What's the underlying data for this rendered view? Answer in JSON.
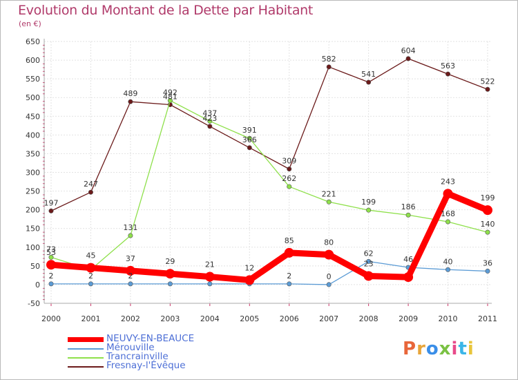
{
  "title": "Evolution du Montant de la Dette par Habitant",
  "subtitle": "(en €)",
  "logo": {
    "text": "Proxiti",
    "colors": [
      "#e8663a",
      "#e8a53a",
      "#3a8ee8",
      "#7ac143",
      "#e84a8a",
      "#3ab5e8",
      "#e8c53a"
    ]
  },
  "chart_data": {
    "type": "line",
    "title": "Evolution du Montant de la Dette par Habitant",
    "ylabel": "(en €)",
    "xlabel": "",
    "x": [
      "2000",
      "2001",
      "2002",
      "2003",
      "2004",
      "2005",
      "2006",
      "2007",
      "2008",
      "2009",
      "2010",
      "2011"
    ],
    "ylim": [
      -50,
      650
    ],
    "yticks": [
      "650",
      "600",
      "550",
      "500",
      "450",
      "400",
      "350",
      "300",
      "250",
      "200",
      "150",
      "100",
      "50",
      "0",
      "-50"
    ],
    "grid": true,
    "legend_position": "bottom-left",
    "series": [
      {
        "name": "NEUVY-EN-BEAUCE",
        "color": "#ff0000",
        "values": [
          53,
          45,
          37,
          29,
          21,
          12,
          85,
          80,
          23,
          20,
          243,
          199
        ],
        "labels": [
          "53",
          "45",
          "37",
          "29",
          "21",
          "12",
          "85",
          "80",
          "23",
          "",
          "243",
          "199"
        ]
      },
      {
        "name": "Mérouville",
        "color": "#5b9bd5",
        "values": [
          2,
          2,
          2,
          2,
          2,
          2,
          2,
          0,
          62,
          46,
          40,
          36
        ],
        "labels": [
          "2",
          "2",
          "2",
          "",
          "",
          "",
          "2",
          "0",
          "62",
          "46",
          "40",
          "36"
        ]
      },
      {
        "name": "Trancrainville",
        "color": "#8ee04a",
        "values": [
          73,
          40,
          131,
          492,
          437,
          391,
          262,
          221,
          199,
          186,
          168,
          140
        ],
        "labels": [
          "73",
          "",
          "131",
          "492",
          "437",
          "391",
          "262",
          "221",
          "199",
          "186",
          "168",
          "140"
        ]
      },
      {
        "name": "Fresnay-l'Évêque",
        "color": "#6b1a1a",
        "values": [
          197,
          247,
          489,
          481,
          423,
          366,
          309,
          582,
          541,
          604,
          563,
          522
        ],
        "labels": [
          "197",
          "247",
          "489",
          "481",
          "423",
          "366",
          "309",
          "582",
          "541",
          "604",
          "563",
          "522"
        ]
      }
    ]
  }
}
